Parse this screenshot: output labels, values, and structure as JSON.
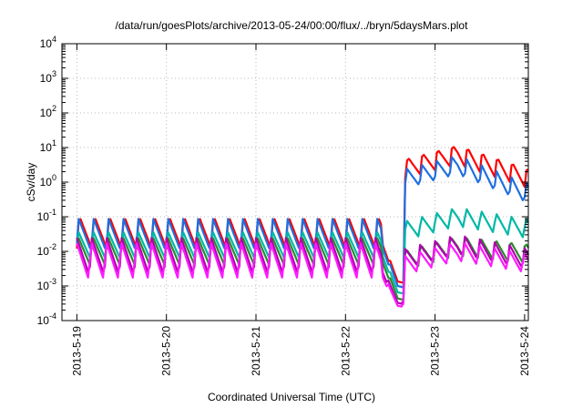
{
  "chart_data": {
    "type": "line",
    "title": "/data/run/goesPlots/archive/2013-05-24/00:00/flux/../bryn/5daysMars.plot",
    "xlabel": "Coordinated Universal Time (UTC)",
    "ylabel": "cSv/day",
    "xlim": [
      "2013-05-18T20:00",
      "2013-05-24T01:00"
    ],
    "ylim": [
      0.0001,
      10000
    ],
    "yscale": "log",
    "grid": true,
    "x_ticks": [
      "2013-5-19",
      "2013-5-20",
      "2013-5-21",
      "2013-5-22",
      "2013-5-23",
      "2013-5-24"
    ],
    "y_ticks": [
      {
        "base": "10",
        "exp": "-4"
      },
      {
        "base": "10",
        "exp": "-3"
      },
      {
        "base": "10",
        "exp": "-2"
      },
      {
        "base": "10",
        "exp": "-1"
      },
      {
        "base": "10",
        "exp": "0"
      },
      {
        "base": "10",
        "exp": "1"
      },
      {
        "base": "10",
        "exp": "2"
      },
      {
        "base": "10",
        "exp": "3"
      },
      {
        "base": "10",
        "exp": "4"
      }
    ],
    "sawtooth_period_hours": 4,
    "event": {
      "dip_start": "2013-05-22T10:00",
      "dip_min": "2013-05-22T14:00",
      "rise": "2013-05-22T16:00"
    },
    "series": [
      {
        "color": "#ff0000",
        "quiet_peak": 0.11,
        "quiet_low": 0.012,
        "dip_value": 0.0012,
        "event_peak": 13,
        "end_value": 0.9
      },
      {
        "color": "#1f6fe0",
        "quiet_peak": 0.09,
        "quiet_low": 0.01,
        "dip_value": 0.0009,
        "event_peak": 6,
        "end_value": 0.3
      },
      {
        "color": "#00b8a6",
        "quiet_peak": 0.04,
        "quiet_low": 0.006,
        "dip_value": 0.0006,
        "event_peak": 0.2,
        "end_value": 0.03
      },
      {
        "color": "#2a8a2a",
        "quiet_peak": 0.03,
        "quiet_low": 0.004,
        "dip_value": 0.0004,
        "event_peak": 0.03,
        "end_value": 0.006
      },
      {
        "color": "#b000b0",
        "quiet_peak": 0.025,
        "quiet_low": 0.002,
        "dip_value": 0.0003,
        "event_peak": 0.03,
        "end_value": 0.004
      },
      {
        "color": "#ff1aff",
        "quiet_peak": 0.02,
        "quiet_low": 0.0015,
        "dip_value": 0.00025,
        "event_peak": 0.02,
        "end_value": 0.003
      }
    ]
  }
}
